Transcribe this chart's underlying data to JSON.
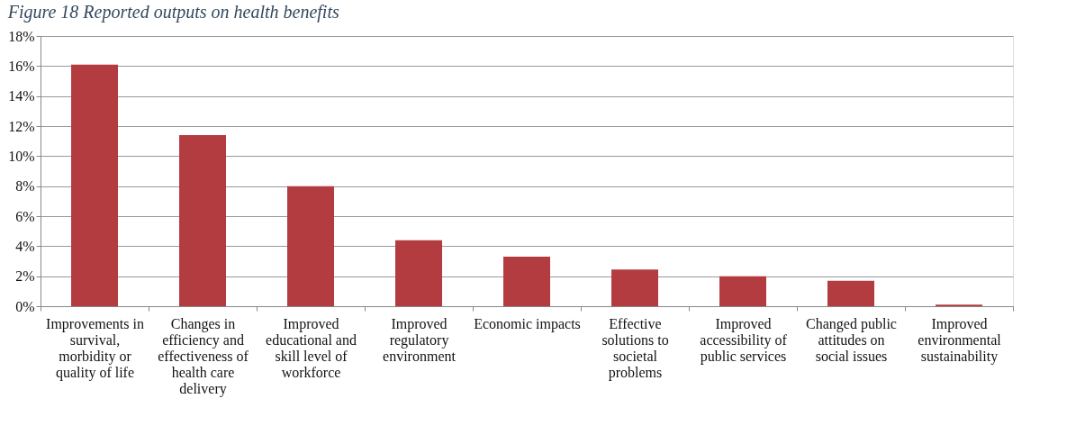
{
  "chart_data": {
    "type": "bar",
    "title": "Figure 18 Reported outputs on health benefits",
    "categories": [
      "Improvements in survival, morbidity or quality of life",
      "Changes in efficiency and effectiveness of health care delivery",
      "Improved educational and skill level of workforce",
      "Improved regulatory environment",
      "Economic impacts",
      "Effective solutions to societal problems",
      "Improved accessibility of public services",
      "Changed public attitudes on social issues",
      "Improved environmental sustainability"
    ],
    "values": [
      16.1,
      11.4,
      8.0,
      4.4,
      3.3,
      2.45,
      2.0,
      1.7,
      0.1
    ],
    "color": "#b33c41",
    "ylim": [
      0,
      18
    ],
    "yticks": [
      {
        "value": 0,
        "label": "0%"
      },
      {
        "value": 2,
        "label": "2%"
      },
      {
        "value": 4,
        "label": "4%"
      },
      {
        "value": 6,
        "label": "6%"
      },
      {
        "value": 8,
        "label": "8%"
      },
      {
        "value": 10,
        "label": "10%"
      },
      {
        "value": 12,
        "label": "12%"
      },
      {
        "value": 14,
        "label": "14%"
      },
      {
        "value": 16,
        "label": "16%"
      },
      {
        "value": 18,
        "label": "18%"
      }
    ],
    "grid": "y"
  }
}
